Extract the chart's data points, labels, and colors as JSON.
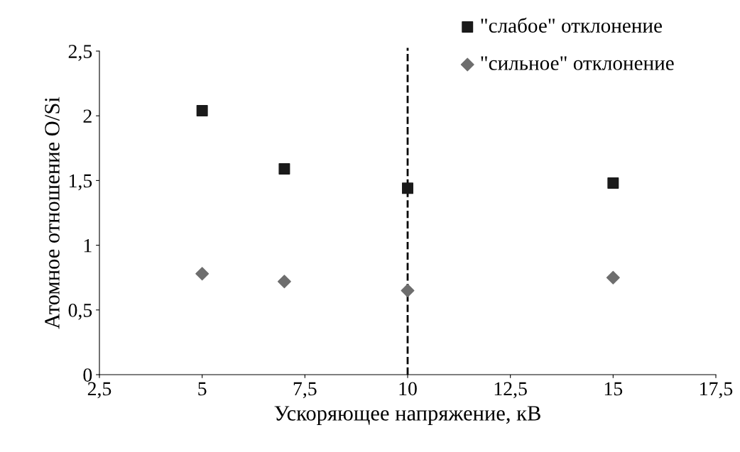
{
  "chart_data": {
    "type": "scatter",
    "xlabel": "Ускоряющее напряжение, кВ",
    "ylabel": "Атомное отношение O/Si",
    "series": [
      {
        "name": "\"слабое\" отклонение",
        "color": "#1a1a1a",
        "marker": "square",
        "x": [
          5,
          7,
          10,
          15
        ],
        "values": [
          2.04,
          1.59,
          1.44,
          1.48
        ]
      },
      {
        "name": "\"сильное\" отклонение",
        "color": "#6e6e6e",
        "marker": "diamond",
        "x": [
          5,
          7,
          10,
          15
        ],
        "values": [
          0.78,
          0.72,
          0.65,
          0.75
        ]
      }
    ],
    "xlim": [
      2.5,
      17.5
    ],
    "xticks": [
      {
        "value": 2.5,
        "label": "2,5"
      },
      5,
      {
        "value": 7.5,
        "label": "7,5"
      },
      10,
      {
        "value": 12.5,
        "label": "12,5"
      },
      15,
      {
        "value": 17.5,
        "label": "17,5"
      }
    ],
    "ylim": [
      0,
      2.5
    ],
    "yticks": [
      0,
      {
        "value": 0.5,
        "label": "0,5"
      },
      1,
      {
        "value": 1.5,
        "label": "1,5"
      },
      2,
      {
        "value": 2.5,
        "label": "2,5"
      }
    ],
    "ref_lines": [
      {
        "axis": "x",
        "value": 10,
        "color": "#000000",
        "line_style": "dashed"
      }
    ],
    "grid": false,
    "legend": "top right"
  }
}
